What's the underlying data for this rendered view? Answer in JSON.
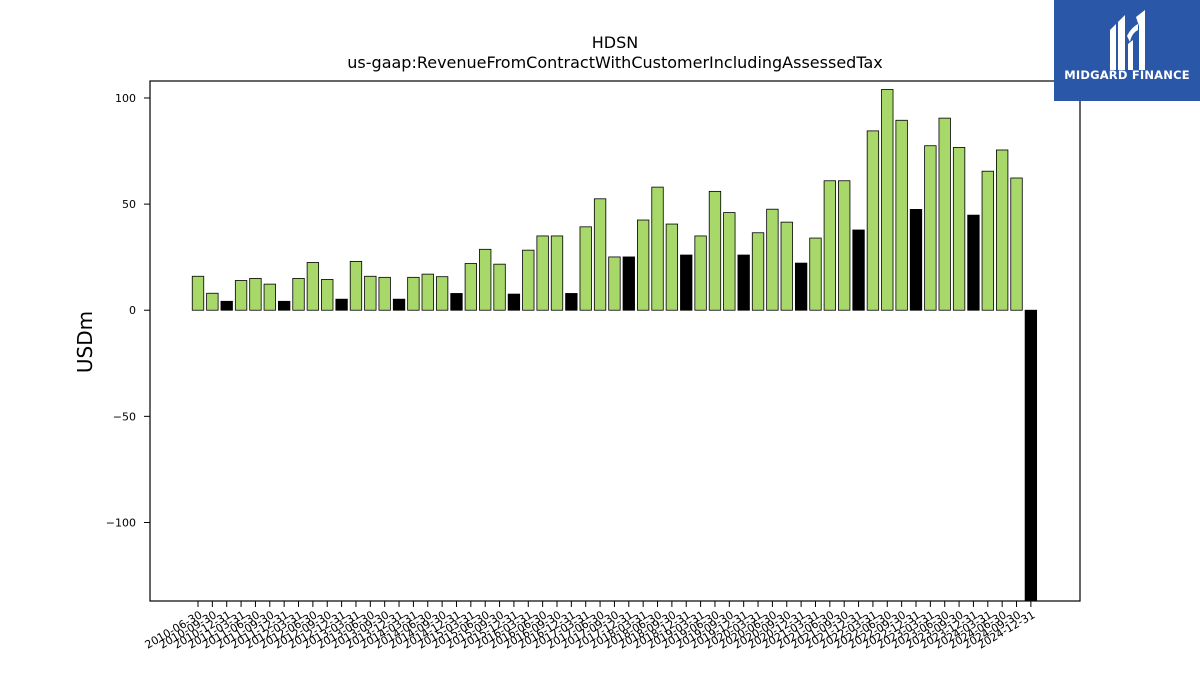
{
  "chart_data": {
    "type": "bar",
    "title": "HDSN",
    "subtitle": "us-gaap:RevenueFromContractWithCustomerIncludingAssessedTax",
    "ylabel": "USDm",
    "ylim": [
      -137,
      108
    ],
    "yticks": [
      -100,
      -50,
      0,
      50,
      100
    ],
    "colors": {
      "quarterly": "#a8d86a",
      "annual": "#000000",
      "edge": "#000000"
    },
    "categories": [
      "2010-06-30",
      "2010-09-30",
      "2010-12-31",
      "2011-03-31",
      "2011-06-30",
      "2011-09-30",
      "2011-12-31",
      "2012-03-31",
      "2012-06-30",
      "2012-09-30",
      "2012-12-31",
      "2013-03-31",
      "2013-06-30",
      "2013-09-30",
      "2013-12-31",
      "2014-03-31",
      "2014-06-30",
      "2014-09-30",
      "2014-12-31",
      "2015-03-31",
      "2015-06-30",
      "2015-09-30",
      "2015-12-31",
      "2016-03-31",
      "2016-06-30",
      "2016-09-30",
      "2016-12-31",
      "2017-03-31",
      "2017-06-30",
      "2017-09-30",
      "2017-12-31",
      "2018-03-31",
      "2018-06-30",
      "2018-09-30",
      "2018-12-31",
      "2019-03-31",
      "2019-06-30",
      "2019-09-30",
      "2019-12-31",
      "2020-03-31",
      "2020-06-30",
      "2020-09-30",
      "2020-12-31",
      "2021-03-31",
      "2021-06-30",
      "2021-09-30",
      "2021-12-31",
      "2022-03-31",
      "2022-06-30",
      "2022-09-30",
      "2022-12-31",
      "2023-03-31",
      "2023-06-30",
      "2023-09-30",
      "2023-12-31",
      "2024-03-31",
      "2024-06-30",
      "2024-09-30",
      "2024-12-31"
    ],
    "values": [
      16,
      8,
      4.2,
      14,
      15,
      12.3,
      4.2,
      15,
      22.5,
      14.5,
      5.2,
      23,
      16,
      15.5,
      5.2,
      15.5,
      17,
      15.8,
      7.9,
      22,
      28.7,
      21.7,
      7.6,
      28.3,
      35,
      35,
      7.9,
      39.3,
      52.5,
      25.1,
      25.1,
      42.5,
      58,
      40.6,
      26,
      35,
      56,
      46,
      26,
      36.5,
      47.6,
      41.5,
      22.2,
      34,
      61,
      61,
      37.8,
      84.5,
      104,
      89.5,
      47.5,
      77.5,
      90.5,
      76.7,
      44.8,
      65.5,
      75.5,
      62.3,
      -137
    ],
    "annual_flags": [
      0,
      0,
      1,
      0,
      0,
      0,
      1,
      0,
      0,
      0,
      1,
      0,
      0,
      0,
      1,
      0,
      0,
      0,
      1,
      0,
      0,
      0,
      1,
      0,
      0,
      0,
      1,
      0,
      0,
      0,
      1,
      0,
      0,
      0,
      1,
      0,
      0,
      0,
      1,
      0,
      0,
      0,
      1,
      0,
      0,
      0,
      1,
      0,
      0,
      0,
      1,
      0,
      0,
      0,
      1,
      0,
      0,
      0,
      1
    ]
  },
  "logo": {
    "text": "MIDGARD FINANCE"
  }
}
